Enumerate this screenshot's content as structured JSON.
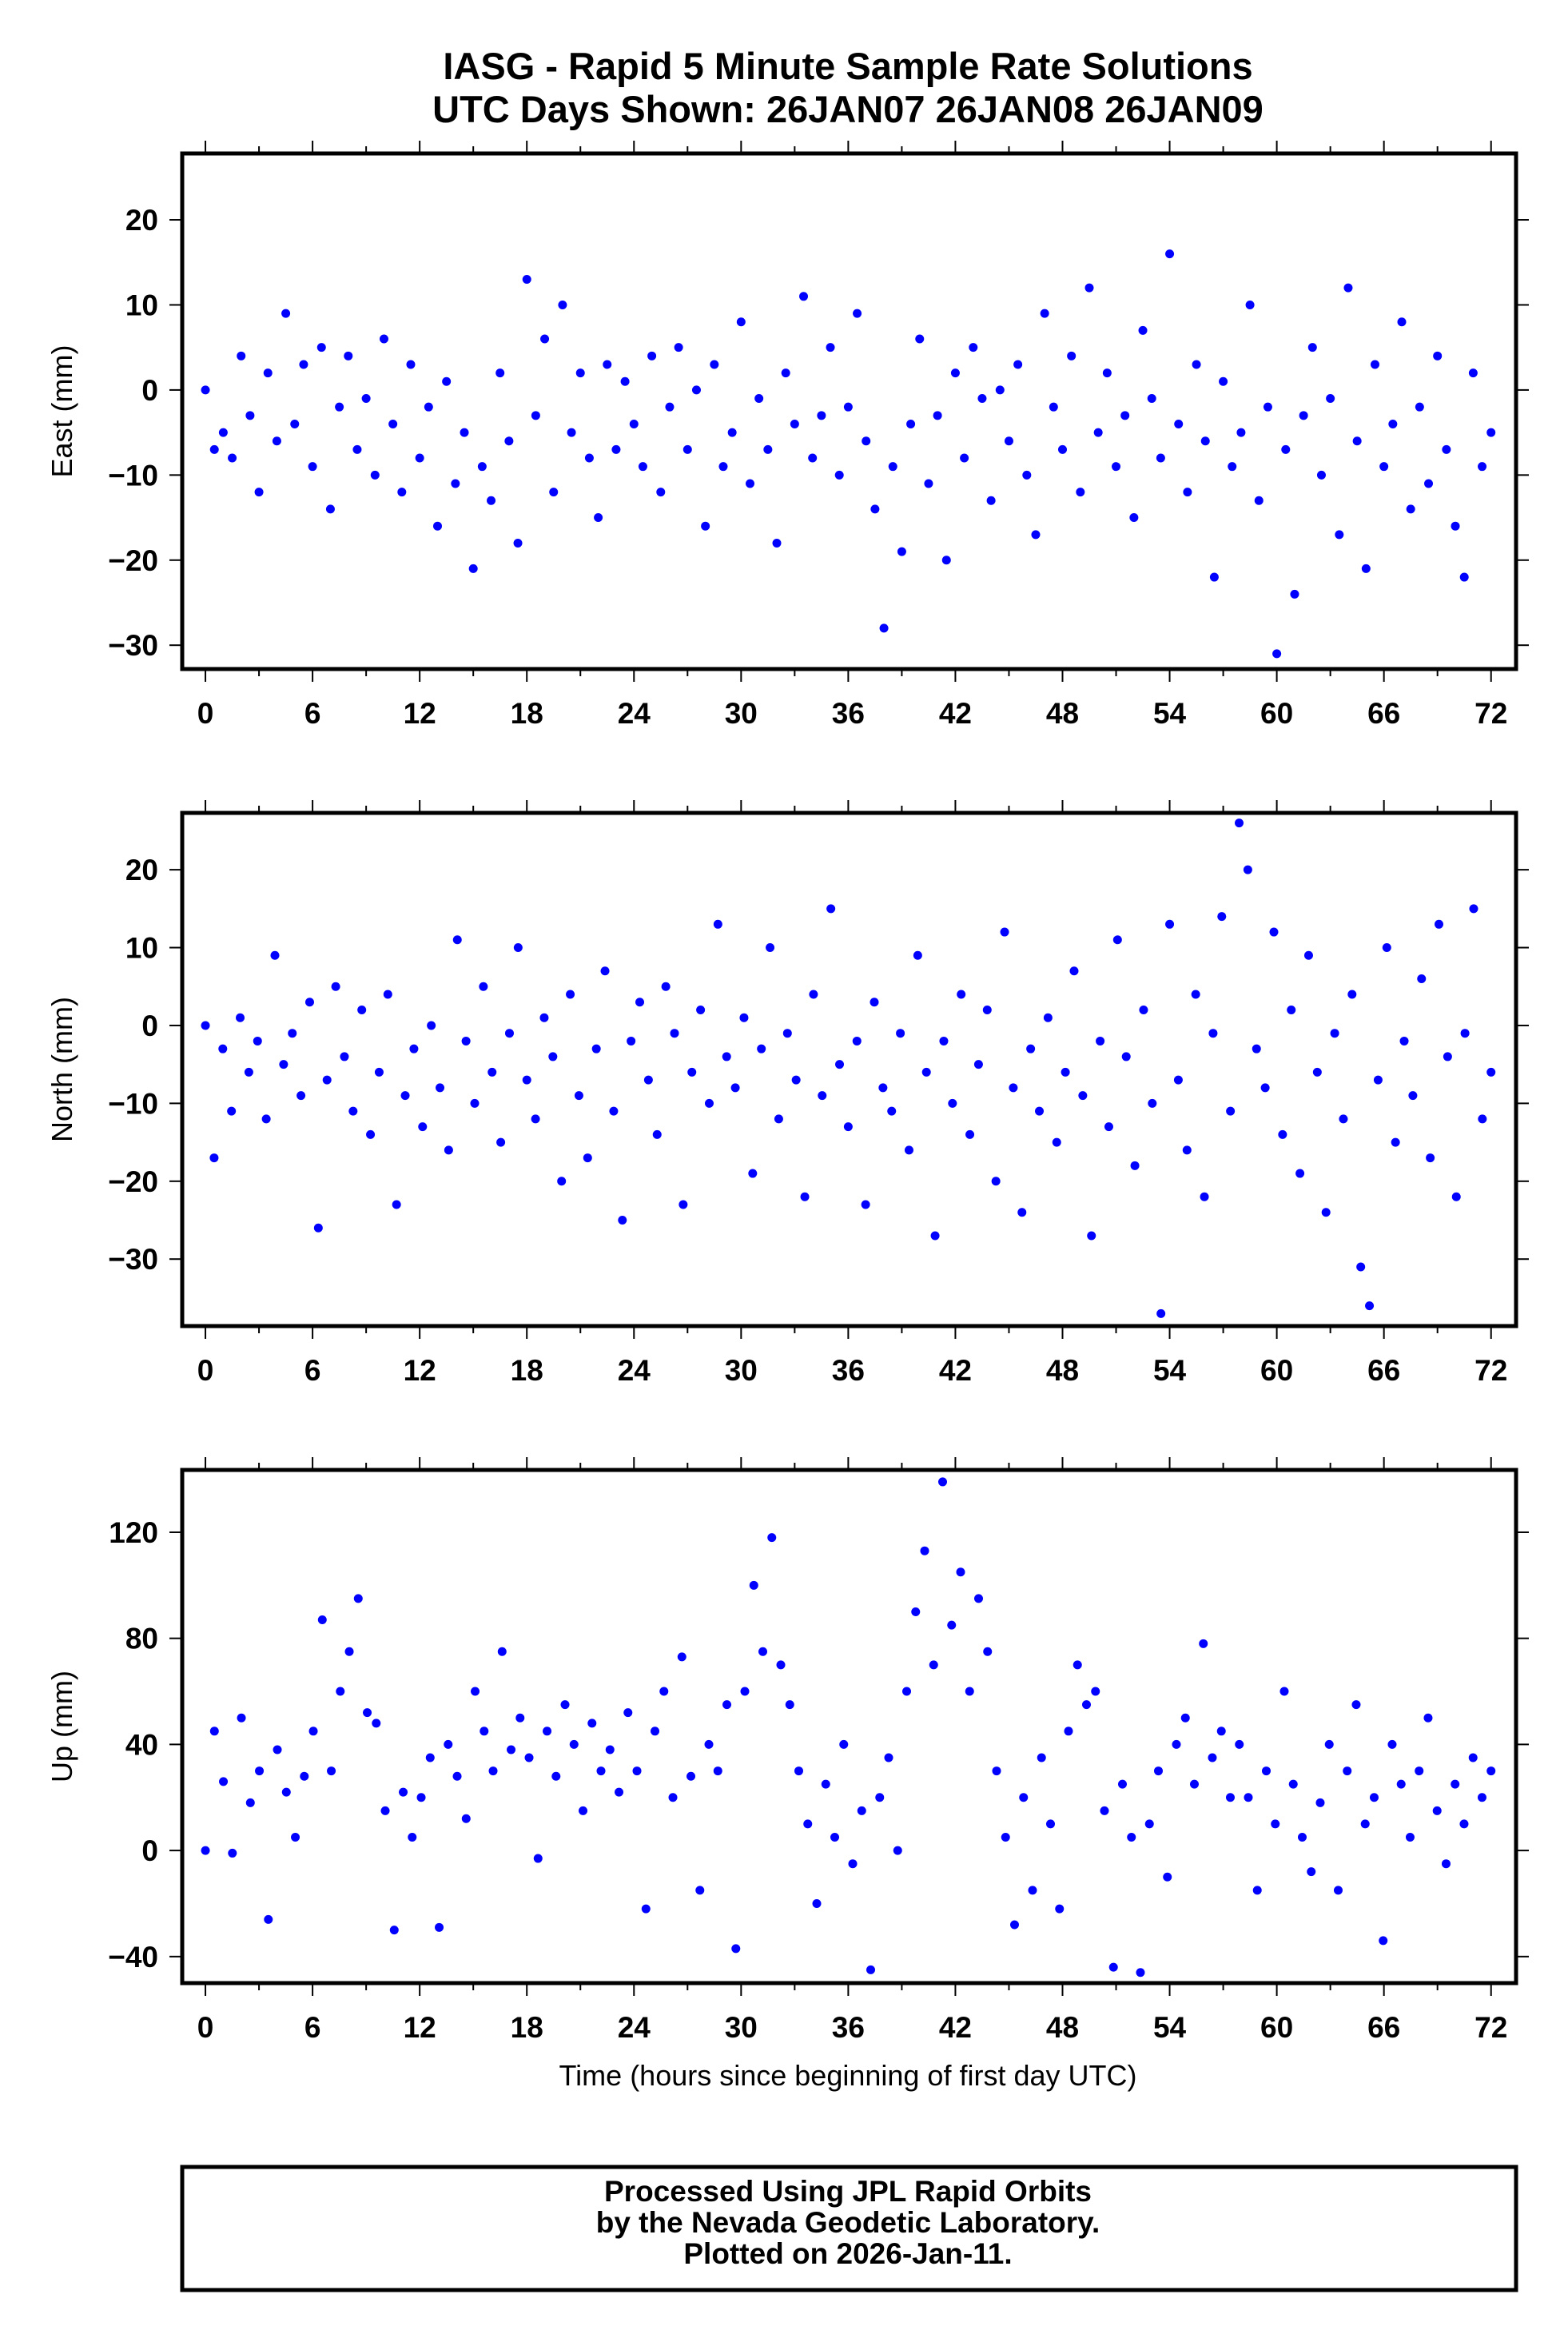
{
  "title_line1": "IASG - Rapid 5 Minute Sample Rate Solutions",
  "title_line2": "UTC Days Shown:  26JAN07 26JAN08 26JAN09",
  "footer": {
    "line1": "Processed Using JPL Rapid Orbits",
    "line2": "by the Nevada Geodetic Laboratory.",
    "line3": "Plotted on 2026-Jan-11."
  },
  "colors": {
    "points": "#0000ff",
    "frame": "#000000"
  },
  "chart_data": [
    {
      "type": "scatter",
      "name": "east",
      "ylabel": "East (mm)",
      "xlabel": "",
      "xlim": [
        -1.3,
        73.4
      ],
      "ylim": [
        -32.8,
        27.8
      ],
      "xticks": [
        0,
        6,
        12,
        18,
        24,
        30,
        36,
        42,
        48,
        54,
        60,
        66,
        72
      ],
      "yticks": [
        -30,
        -20,
        -10,
        0,
        10,
        20
      ],
      "x_start": 0,
      "x_end": 72,
      "values": [
        0,
        -7,
        -5,
        -8,
        4,
        -3,
        -12,
        2,
        -6,
        9,
        -4,
        3,
        -9,
        5,
        -14,
        -2,
        4,
        -7,
        -1,
        -10,
        6,
        -4,
        -12,
        3,
        -8,
        -2,
        -16,
        1,
        -11,
        -5,
        -21,
        -9,
        -13,
        2,
        -6,
        -18,
        13,
        -3,
        6,
        -12,
        10,
        -5,
        2,
        -8,
        -15,
        3,
        -7,
        1,
        -4,
        -9,
        4,
        -12,
        -2,
        5,
        -7,
        0,
        -16,
        3,
        -9,
        -5,
        8,
        -11,
        -1,
        -7,
        -18,
        2,
        -4,
        11,
        -8,
        -3,
        5,
        -10,
        -2,
        9,
        -6,
        -14,
        -28,
        -9,
        -19,
        -4,
        6,
        -11,
        -3,
        -20,
        2,
        -8,
        5,
        -1,
        -13,
        0,
        -6,
        3,
        -10,
        -17,
        9,
        -2,
        -7,
        4,
        -12,
        12,
        -5,
        2,
        -9,
        -3,
        -15,
        7,
        -1,
        -8,
        16,
        -4,
        -12,
        3,
        -6,
        -22,
        1,
        -9,
        -5,
        10,
        -13,
        -2,
        -31,
        -7,
        -24,
        -3,
        5,
        -10,
        -1,
        -17,
        12,
        -6,
        -21,
        3,
        -9,
        -4,
        8,
        -14,
        -2,
        -11,
        4,
        -7,
        -16,
        -22,
        2,
        -9,
        -5
      ]
    },
    {
      "type": "scatter",
      "name": "north",
      "ylabel": "North (mm)",
      "xlabel": "",
      "xlim": [
        -1.3,
        73.4
      ],
      "ylim": [
        -38.6,
        27.3
      ],
      "xticks": [
        0,
        6,
        12,
        18,
        24,
        30,
        36,
        42,
        48,
        54,
        60,
        66,
        72
      ],
      "yticks": [
        -30,
        -20,
        -10,
        0,
        10,
        20
      ],
      "x_start": 0,
      "x_end": 72,
      "values": [
        0,
        -17,
        -3,
        -11,
        1,
        -6,
        -2,
        -12,
        9,
        -5,
        -1,
        -9,
        3,
        -26,
        -7,
        5,
        -4,
        -11,
        2,
        -14,
        -6,
        4,
        -23,
        -9,
        -3,
        -13,
        0,
        -8,
        -16,
        11,
        -2,
        -10,
        5,
        -6,
        -15,
        -1,
        10,
        -7,
        -12,
        1,
        -4,
        -20,
        4,
        -9,
        -17,
        -3,
        7,
        -11,
        -25,
        -2,
        3,
        -7,
        -14,
        5,
        -1,
        -23,
        -6,
        2,
        -10,
        13,
        -4,
        -8,
        1,
        -19,
        -3,
        10,
        -12,
        -1,
        -7,
        -22,
        4,
        -9,
        15,
        -5,
        -13,
        -2,
        -23,
        3,
        -8,
        -11,
        -1,
        -16,
        9,
        -6,
        -27,
        -2,
        -10,
        4,
        -14,
        -5,
        2,
        -20,
        12,
        -8,
        -24,
        -3,
        -11,
        1,
        -15,
        -6,
        7,
        -9,
        -27,
        -2,
        -13,
        11,
        -4,
        -18,
        2,
        -10,
        -37,
        13,
        -7,
        -16,
        4,
        -22,
        -1,
        14,
        -11,
        26,
        20,
        -3,
        -8,
        12,
        -14,
        2,
        -19,
        9,
        -6,
        -24,
        -1,
        -12,
        4,
        -31,
        -36,
        -7,
        10,
        -15,
        -2,
        -9,
        6,
        -17,
        13,
        -4,
        -22,
        -1,
        15,
        -12,
        -6
      ]
    },
    {
      "type": "scatter",
      "name": "up",
      "ylabel": "Up (mm)",
      "xlabel": "Time (hours since beginning of first day UTC)",
      "xlim": [
        -1.3,
        73.4
      ],
      "ylim": [
        -50,
        143.5
      ],
      "xticks": [
        0,
        6,
        12,
        18,
        24,
        30,
        36,
        42,
        48,
        54,
        60,
        66,
        72
      ],
      "yticks": [
        -40,
        0,
        40,
        80,
        120
      ],
      "x_start": 0,
      "x_end": 72,
      "values": [
        0,
        45,
        26,
        -1,
        50,
        18,
        30,
        -26,
        38,
        22,
        5,
        28,
        45,
        87,
        30,
        60,
        75,
        95,
        52,
        48,
        15,
        -30,
        22,
        5,
        20,
        35,
        -29,
        40,
        28,
        12,
        60,
        45,
        30,
        75,
        38,
        50,
        35,
        -3,
        45,
        28,
        55,
        40,
        15,
        48,
        30,
        38,
        22,
        52,
        30,
        -22,
        45,
        60,
        20,
        73,
        28,
        -15,
        40,
        30,
        55,
        -37,
        60,
        100,
        75,
        118,
        70,
        55,
        30,
        10,
        -20,
        25,
        5,
        40,
        -5,
        15,
        -45,
        20,
        35,
        0,
        60,
        90,
        113,
        70,
        139,
        85,
        105,
        60,
        95,
        75,
        30,
        5,
        -28,
        20,
        -15,
        35,
        10,
        -22,
        45,
        70,
        55,
        60,
        15,
        -44,
        25,
        5,
        -46,
        10,
        30,
        -10,
        40,
        50,
        25,
        78,
        35,
        45,
        20,
        40,
        20,
        -15,
        30,
        10,
        60,
        25,
        5,
        -8,
        18,
        40,
        -15,
        30,
        55,
        10,
        20,
        -34,
        40,
        25,
        5,
        30,
        50,
        15,
        -5,
        25,
        10,
        35,
        20,
        30
      ]
    }
  ]
}
